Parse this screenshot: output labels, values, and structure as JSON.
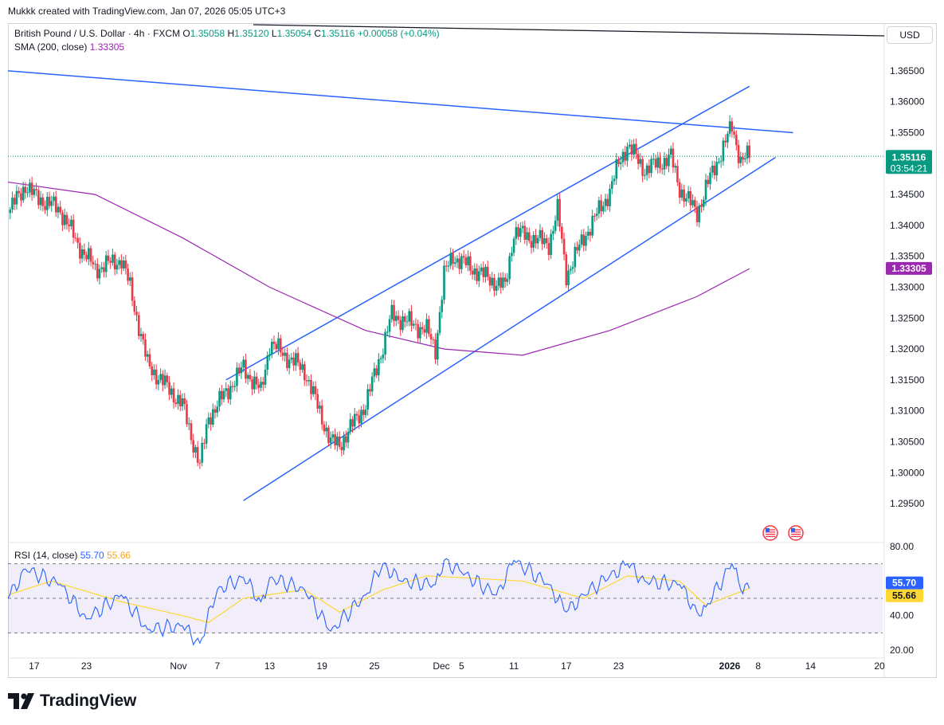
{
  "header": {
    "watermark": "Mukkk created with TradingView.com, Jan 07, 2026 05:05 UTC+3"
  },
  "legend": {
    "symbol": "British Pound / U.S. Dollar · 4h · FXCM",
    "o_label": "O",
    "o": "1.35058",
    "h_label": "H",
    "h": "1.35120",
    "l_label": "L",
    "l": "1.35054",
    "c_label": "C",
    "c": "1.35116",
    "change": "+0.00058 (+0.04%)",
    "sma_label": "SMA (200, close)",
    "sma_value": "1.33305",
    "rsi_label": "RSI (14, close)",
    "rsi_value": "55.70",
    "rsi_ma_value": "55.66"
  },
  "currency_button": "USD",
  "footer": {
    "brand": "TradingView"
  },
  "colors": {
    "up": "#089981",
    "down": "#f23645",
    "sma": "#9c27b0",
    "trendline": "#2962ff",
    "rsi": "#2962ff",
    "rsi_ma": "#fdd835",
    "rsi_band": "#7e57c2"
  },
  "chart_data": [
    {
      "type": "candlestick",
      "timeframe": "4h",
      "ylim": [
        1.2925,
        1.3675
      ],
      "y_ticks": [
        "1.36500",
        "1.36000",
        "1.35500",
        "1.35000",
        "1.34500",
        "1.34000",
        "1.33500",
        "1.33000",
        "1.32500",
        "1.32000",
        "1.31500",
        "1.31000",
        "1.30500",
        "1.30000",
        "1.29500"
      ],
      "x_ticks": [
        "17",
        "23",
        "Nov",
        "7",
        "13",
        "19",
        "25",
        "Dec",
        "5",
        "11",
        "17",
        "23",
        "2026",
        "8",
        "14",
        "20"
      ],
      "last_price": "1.35116",
      "countdown": "03:54:21",
      "sma_label_value": "1.33305",
      "swing_path": [
        {
          "x": "Oct 14",
          "y": 1.342
        },
        {
          "x": "Oct 16",
          "y": 1.3465
        },
        {
          "x": "Oct 17",
          "y": 1.3448
        },
        {
          "x": "Oct 20",
          "y": 1.3425
        },
        {
          "x": "Oct 22",
          "y": 1.337
        },
        {
          "x": "Oct 24",
          "y": 1.333
        },
        {
          "x": "Oct 27",
          "y": 1.3345
        },
        {
          "x": "Oct 28",
          "y": 1.33
        },
        {
          "x": "Oct 30",
          "y": 1.3175
        },
        {
          "x": "Nov 3",
          "y": 1.311
        },
        {
          "x": "Nov 4",
          "y": 1.306
        },
        {
          "x": "Nov 5",
          "y": 1.3012
        },
        {
          "x": "Nov 6",
          "y": 1.309
        },
        {
          "x": "Nov 10",
          "y": 1.317
        },
        {
          "x": "Nov 12",
          "y": 1.313
        },
        {
          "x": "Nov 13",
          "y": 1.321
        },
        {
          "x": "Nov 17",
          "y": 1.3165
        },
        {
          "x": "Nov 20",
          "y": 1.305
        },
        {
          "x": "Nov 21",
          "y": 1.3045
        },
        {
          "x": "Nov 24",
          "y": 1.311
        },
        {
          "x": "Nov 26",
          "y": 1.3205
        },
        {
          "x": "Nov 27",
          "y": 1.3255
        },
        {
          "x": "Dec 1",
          "y": 1.323
        },
        {
          "x": "Dec 2",
          "y": 1.32
        },
        {
          "x": "Dec 3",
          "y": 1.332
        },
        {
          "x": "Dec 4",
          "y": 1.335
        },
        {
          "x": "Dec 8",
          "y": 1.3315
        },
        {
          "x": "Dec 10",
          "y": 1.33
        },
        {
          "x": "Dec 11",
          "y": 1.339
        },
        {
          "x": "Dec 15",
          "y": 1.337
        },
        {
          "x": "Dec 16",
          "y": 1.3425
        },
        {
          "x": "Dec 17",
          "y": 1.332
        },
        {
          "x": "Dec 19",
          "y": 1.338
        },
        {
          "x": "Dec 22",
          "y": 1.3455
        },
        {
          "x": "Dec 23",
          "y": 1.35
        },
        {
          "x": "Dec 24",
          "y": 1.353
        },
        {
          "x": "Dec 26",
          "y": 1.349
        },
        {
          "x": "Dec 29",
          "y": 1.351
        },
        {
          "x": "Dec 30",
          "y": 1.346
        },
        {
          "x": "Jan 1",
          "y": 1.342
        },
        {
          "x": "Jan 2",
          "y": 1.346
        },
        {
          "x": "Jan 5",
          "y": 1.356
        },
        {
          "x": "Jan 6",
          "y": 1.3505
        },
        {
          "x": "Jan 7",
          "y": 1.3512
        }
      ],
      "sma_200": [
        {
          "x": "Oct 14",
          "y": 1.347
        },
        {
          "x": "Oct 24",
          "y": 1.345
        },
        {
          "x": "Nov 3",
          "y": 1.338
        },
        {
          "x": "Nov 13",
          "y": 1.33
        },
        {
          "x": "Nov 24",
          "y": 1.323
        },
        {
          "x": "Dec 3",
          "y": 1.32
        },
        {
          "x": "Dec 12",
          "y": 1.319
        },
        {
          "x": "Dec 22",
          "y": 1.323
        },
        {
          "x": "Jan 1",
          "y": 1.3285
        },
        {
          "x": "Jan 7",
          "y": 1.333
        }
      ],
      "trendlines": [
        {
          "name": "descending resistance",
          "from": {
            "x": "Oct 14",
            "y": 1.365
          },
          "to": {
            "x": "Jan 12",
            "y": 1.355
          }
        },
        {
          "name": "channel upper",
          "from": {
            "x": "Nov 8",
            "y": 1.315
          },
          "to": {
            "x": "Jan 7",
            "y": 1.3625
          }
        },
        {
          "name": "channel lower",
          "from": {
            "x": "Nov 10",
            "y": 1.2955
          },
          "to": {
            "x": "Jan 10",
            "y": 1.351
          }
        }
      ]
    },
    {
      "type": "line",
      "indicator": "RSI",
      "ylim": [
        20,
        80
      ],
      "y_ticks": [
        "80.00",
        "60.00",
        "40.00",
        "20.00"
      ],
      "bands": {
        "upper": 70,
        "middle": 50,
        "lower": 30
      },
      "series": [
        {
          "name": "RSI (14, close)",
          "points": [
            {
              "x": "Oct 14",
              "y": 50
            },
            {
              "x": "Oct 16",
              "y": 67
            },
            {
              "x": "Oct 20",
              "y": 58
            },
            {
              "x": "Oct 23",
              "y": 38
            },
            {
              "x": "Oct 27",
              "y": 52
            },
            {
              "x": "Oct 30",
              "y": 32
            },
            {
              "x": "Nov 3",
              "y": 34
            },
            {
              "x": "Nov 5",
              "y": 24
            },
            {
              "x": "Nov 7",
              "y": 55
            },
            {
              "x": "Nov 10",
              "y": 62
            },
            {
              "x": "Nov 12",
              "y": 48
            },
            {
              "x": "Nov 13",
              "y": 62
            },
            {
              "x": "Nov 17",
              "y": 55
            },
            {
              "x": "Nov 20",
              "y": 31
            },
            {
              "x": "Nov 24",
              "y": 52
            },
            {
              "x": "Nov 26",
              "y": 70
            },
            {
              "x": "Nov 28",
              "y": 60
            },
            {
              "x": "Dec 2",
              "y": 58
            },
            {
              "x": "Dec 3",
              "y": 72
            },
            {
              "x": "Dec 5",
              "y": 65
            },
            {
              "x": "Dec 9",
              "y": 52
            },
            {
              "x": "Dec 11",
              "y": 72
            },
            {
              "x": "Dec 15",
              "y": 58
            },
            {
              "x": "Dec 17",
              "y": 42
            },
            {
              "x": "Dec 19",
              "y": 52
            },
            {
              "x": "Dec 22",
              "y": 63
            },
            {
              "x": "Dec 24",
              "y": 70
            },
            {
              "x": "Dec 26",
              "y": 60
            },
            {
              "x": "Dec 30",
              "y": 58
            },
            {
              "x": "Jan 1",
              "y": 42
            },
            {
              "x": "Jan 2",
              "y": 45
            },
            {
              "x": "Jan 5",
              "y": 70
            },
            {
              "x": "Jan 6",
              "y": 55
            },
            {
              "x": "Jan 7",
              "y": 55.7
            }
          ]
        },
        {
          "name": "RSI-based MA",
          "points": [
            {
              "x": "Oct 14",
              "y": 52
            },
            {
              "x": "Oct 19",
              "y": 60
            },
            {
              "x": "Oct 27",
              "y": 48
            },
            {
              "x": "Nov 3",
              "y": 40
            },
            {
              "x": "Nov 6",
              "y": 36
            },
            {
              "x": "Nov 10",
              "y": 50
            },
            {
              "x": "Nov 17",
              "y": 55
            },
            {
              "x": "Nov 21",
              "y": 42
            },
            {
              "x": "Nov 26",
              "y": 55
            },
            {
              "x": "Dec 1",
              "y": 63
            },
            {
              "x": "Dec 5",
              "y": 62
            },
            {
              "x": "Dec 12",
              "y": 60
            },
            {
              "x": "Dec 19",
              "y": 50
            },
            {
              "x": "Dec 24",
              "y": 63
            },
            {
              "x": "Dec 30",
              "y": 60
            },
            {
              "x": "Jan 2",
              "y": 46
            },
            {
              "x": "Jan 5",
              "y": 52
            },
            {
              "x": "Jan 7",
              "y": 55.66
            }
          ]
        }
      ]
    }
  ]
}
